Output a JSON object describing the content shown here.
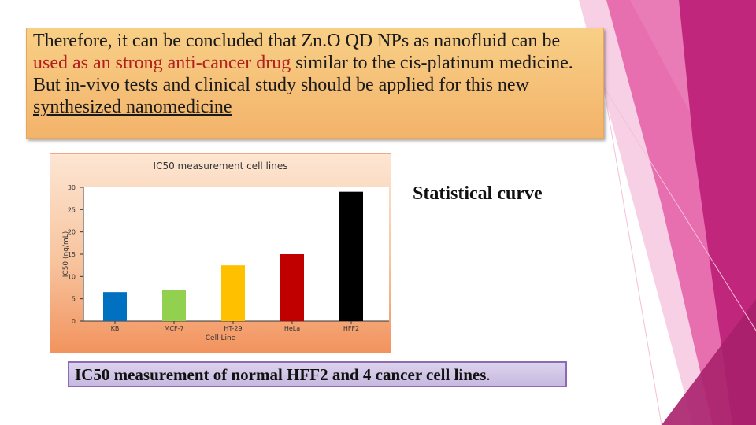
{
  "paragraph": {
    "part1": "Therefore, it can be concluded that Zn.O QD NPs as nanofluid can be ",
    "highlight": "used as an strong anti-cancer drug",
    "part2": " similar to the cis-platinum medicine.  But in-vivo tests and clinical study should be applied for this new ",
    "underlined": "synthesized nanomedicine"
  },
  "side_label": "Statistical curve",
  "caption": {
    "bold_text": "IC50 measurement of normal HFF2 and 4 cancer cell lines",
    "period": "."
  },
  "colors": {
    "highlight": "#b21f1f",
    "deco_pink": "#c0267c"
  },
  "chart_data": {
    "type": "bar",
    "title": "IC50 measurement cell lines",
    "xlabel": "Cell Line",
    "ylabel": "IC50 (ng/mL)",
    "categories": [
      "KB",
      "MCF-7",
      "HT-29",
      "HeLa",
      "HFF2"
    ],
    "values": [
      6.5,
      7,
      12.5,
      15,
      29
    ],
    "bar_colors": [
      "#0070c0",
      "#92d050",
      "#ffc000",
      "#c00000",
      "#000000"
    ],
    "ylim": [
      0,
      30
    ],
    "yticks": [
      0,
      5,
      10,
      15,
      20,
      25,
      30
    ],
    "grid": false,
    "legend": "none"
  }
}
